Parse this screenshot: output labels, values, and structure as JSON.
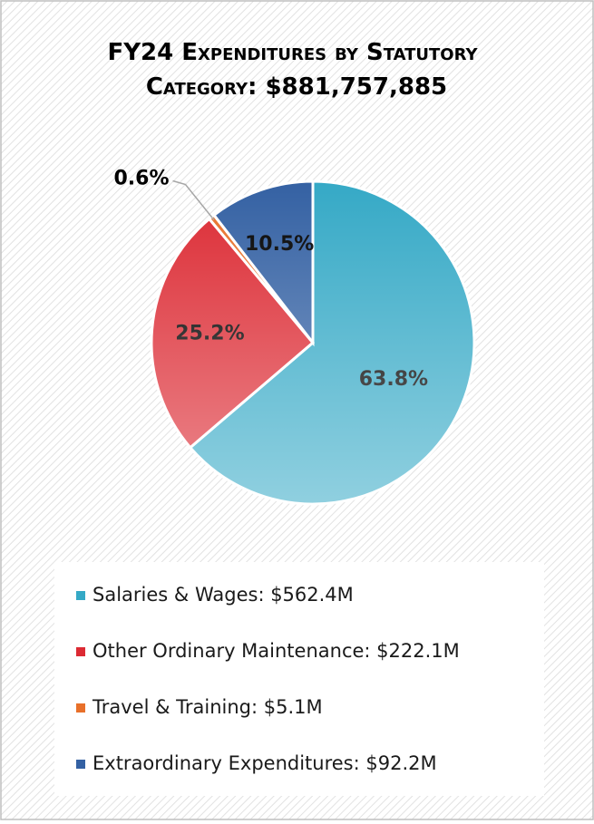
{
  "chart_data": {
    "type": "pie",
    "title": "FY24 Expenditures by Statutory Category: $881,757,885",
    "categories": [
      "Salaries & Wages: $562.4M",
      "Other Ordinary Maintenance: $222.1M",
      "Travel & Training: $5.1M",
      "Extraordinary Expenditures: $92.2M"
    ],
    "values": [
      63.8,
      25.2,
      0.6,
      10.5
    ],
    "value_labels": [
      "63.8%",
      "25.2%",
      "0.6%",
      "10.5%"
    ],
    "colors": [
      "#35a9c6",
      "#dc2a33",
      "#e8702a",
      "#3461a3"
    ],
    "legend": "bottom"
  }
}
